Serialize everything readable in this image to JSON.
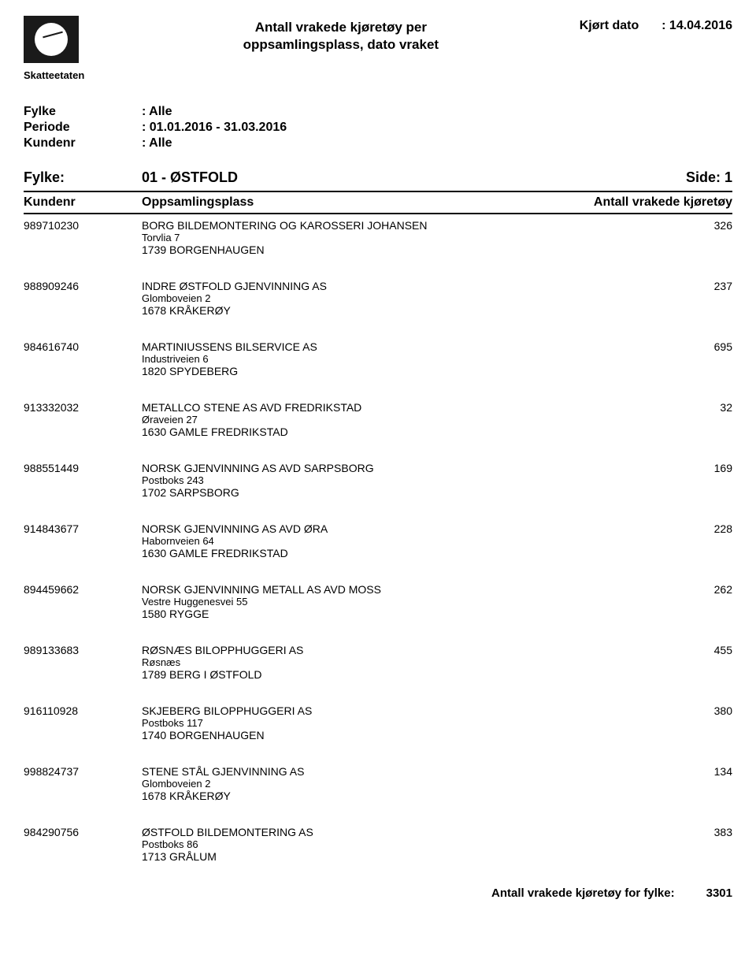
{
  "header": {
    "logo_label": "Skatteetaten",
    "title_line1": "Antall vrakede kjøretøy per",
    "title_line2": "oppsamlingsplass, dato vraket",
    "run_date_label": "Kjørt dato",
    "run_date_value": ": 14.04.2016"
  },
  "params": {
    "fylke_label": "Fylke",
    "fylke_value": ": Alle",
    "periode_label": "Periode",
    "periode_value": ": 01.01.2016 - 31.03.2016",
    "kundenr_label": "Kundenr",
    "kundenr_value": ": Alle"
  },
  "fylke_section": {
    "label": "Fylke:",
    "value": "01 - ØSTFOLD",
    "side_label": "Side:",
    "side_value": "1"
  },
  "table_header": {
    "kundenr": "Kundenr",
    "oppsamlingsplass": "Oppsamlingsplass",
    "antall": "Antall vrakede kjøretøy"
  },
  "entries": [
    {
      "kundenr": "989710230",
      "name": "BORG BILDEMONTERING OG KAROSSERI JOHANSEN",
      "addr": "Torvlia 7",
      "city": "1739 BORGENHAUGEN",
      "count": "326"
    },
    {
      "kundenr": "988909246",
      "name": "INDRE ØSTFOLD GJENVINNING AS",
      "addr": "Glomboveien 2",
      "city": "1678 KRÅKERØY",
      "count": "237"
    },
    {
      "kundenr": "984616740",
      "name": "MARTINIUSSENS BILSERVICE AS",
      "addr": "Industriveien 6",
      "city": "1820 SPYDEBERG",
      "count": "695"
    },
    {
      "kundenr": "913332032",
      "name": "METALLCO STENE AS  AVD FREDRIKSTAD",
      "addr": "Øraveien 27",
      "city": "1630 GAMLE FREDRIKSTAD",
      "count": "32"
    },
    {
      "kundenr": "988551449",
      "name": "NORSK GJENVINNING AS  AVD SARPSBORG",
      "addr": "Postboks 243",
      "city": "1702 SARPSBORG",
      "count": "169"
    },
    {
      "kundenr": "914843677",
      "name": "NORSK GJENVINNING AS  AVD ØRA",
      "addr": "Habornveien 64",
      "city": "1630 GAMLE FREDRIKSTAD",
      "count": "228"
    },
    {
      "kundenr": "894459662",
      "name": "NORSK GJENVINNING METALL AS  AVD MOSS",
      "addr": "Vestre Huggenesvei 55",
      "city": "1580 RYGGE",
      "count": "262"
    },
    {
      "kundenr": "989133683",
      "name": "RØSNÆS BILOPPHUGGERI AS",
      "addr": "Røsnæs",
      "city": "1789 BERG I ØSTFOLD",
      "count": "455"
    },
    {
      "kundenr": "916110928",
      "name": "SKJEBERG BILOPPHUGGERI AS",
      "addr": "Postboks 117",
      "city": "1740 BORGENHAUGEN",
      "count": "380"
    },
    {
      "kundenr": "998824737",
      "name": "STENE STÅL GJENVINNING AS",
      "addr": "Glomboveien 2",
      "city": "1678 KRÅKERØY",
      "count": "134"
    },
    {
      "kundenr": "984290756",
      "name": "ØSTFOLD BILDEMONTERING AS",
      "addr": "Postboks 86",
      "city": "1713 GRÅLUM",
      "count": "383"
    }
  ],
  "footer": {
    "label": "Antall vrakede kjøretøy for fylke:",
    "value": "3301"
  }
}
